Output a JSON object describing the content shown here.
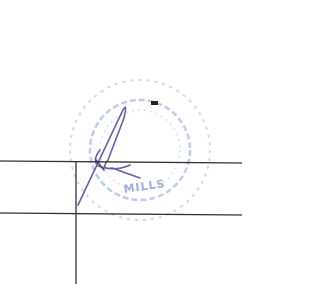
{
  "stamp": {
    "text": "MILLS"
  }
}
